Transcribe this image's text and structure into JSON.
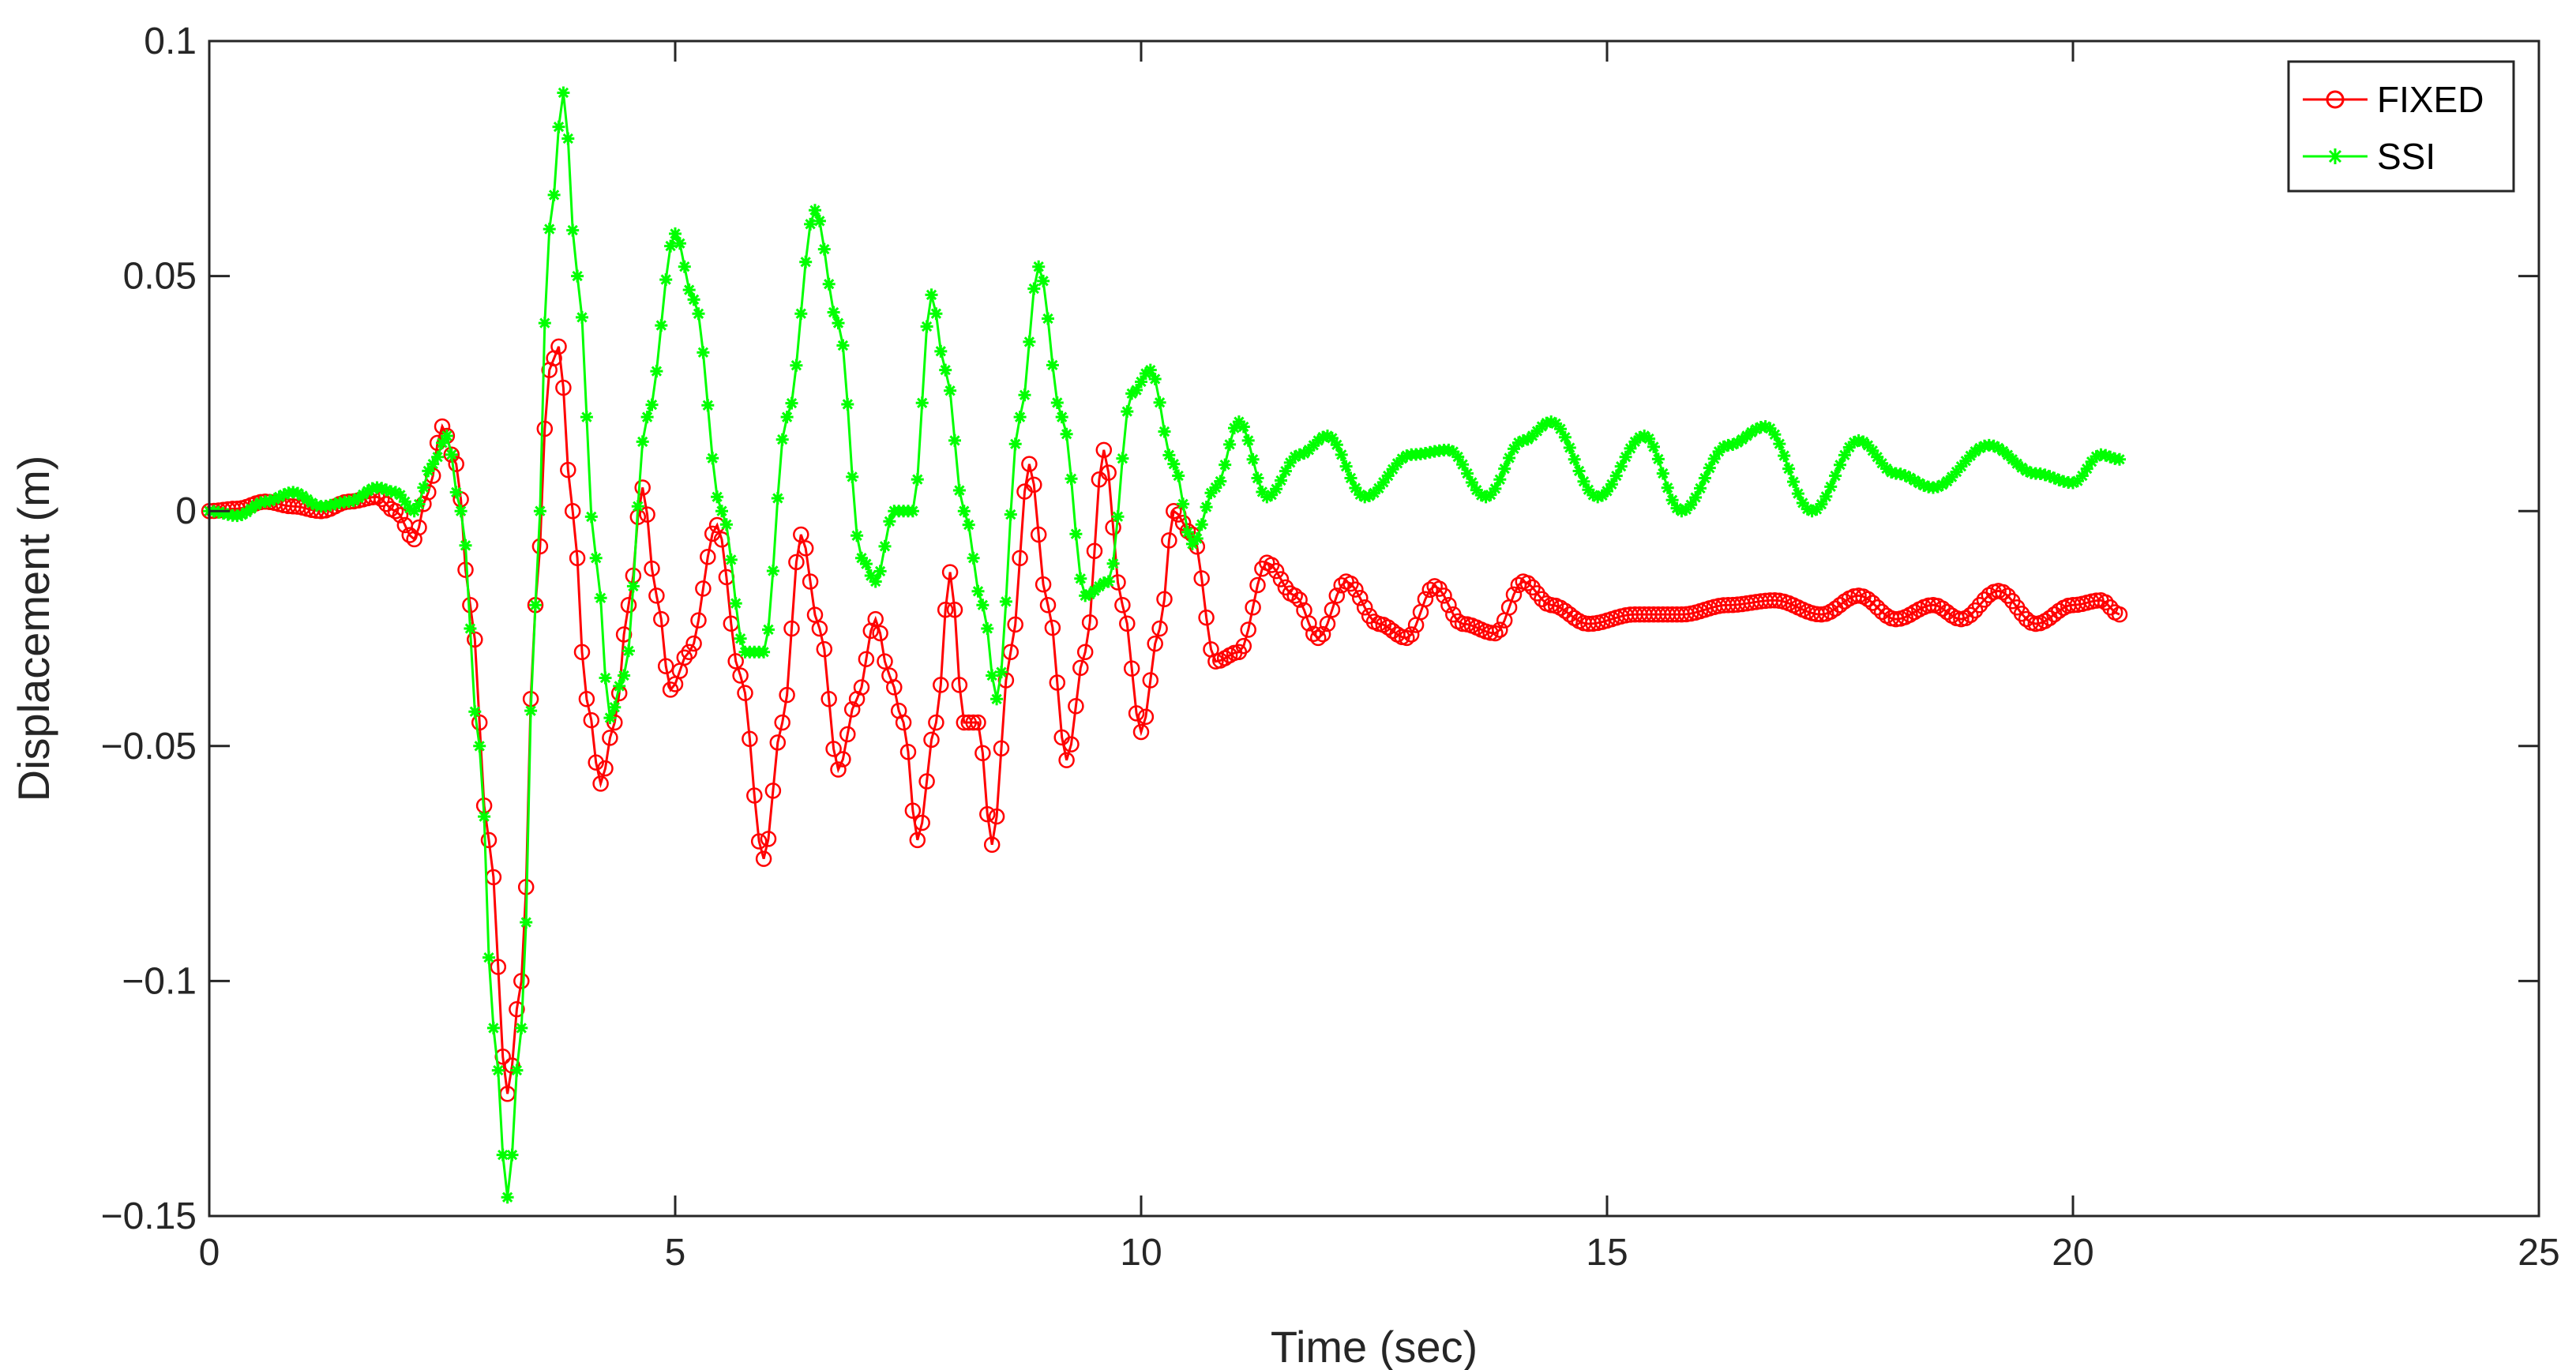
{
  "chart_data": {
    "type": "line",
    "title": "",
    "xlabel": "Time (sec)",
    "ylabel": "Displacement (m)",
    "xlim": [
      0,
      25
    ],
    "ylim": [
      -0.15,
      0.1
    ],
    "xticks": [
      0,
      5,
      10,
      15,
      20,
      25
    ],
    "xtick_labels": [
      "0",
      "5",
      "10",
      "15",
      "20",
      "25"
    ],
    "yticks": [
      -0.15,
      -0.1,
      -0.05,
      0,
      0.05,
      0.1
    ],
    "ytick_labels": [
      "−0.15",
      "−0.1",
      "−0.05",
      "0",
      "0.05",
      "0.1"
    ],
    "grid": false,
    "box": true,
    "legend_position": "top-right",
    "series": [
      {
        "name": "FIXED",
        "color": "#ff0000",
        "marker": "circle",
        "points": [
          [
            0,
            0
          ],
          [
            0.3,
            0.0005
          ],
          [
            0.6,
            0.002
          ],
          [
            0.9,
            0.001
          ],
          [
            1.2,
            0.0
          ],
          [
            1.5,
            0.002
          ],
          [
            1.8,
            0.003
          ],
          [
            2.0,
            0.0
          ],
          [
            2.2,
            -0.006
          ],
          [
            2.35,
            0.004
          ],
          [
            2.5,
            0.018
          ],
          [
            2.65,
            0.01
          ],
          [
            2.8,
            -0.02
          ],
          [
            3.0,
            -0.07
          ],
          [
            3.2,
            -0.124
          ],
          [
            3.35,
            -0.1
          ],
          [
            3.5,
            -0.02
          ],
          [
            3.65,
            0.03
          ],
          [
            3.75,
            0.035
          ],
          [
            3.9,
            0.0
          ],
          [
            4.05,
            -0.04
          ],
          [
            4.2,
            -0.058
          ],
          [
            4.35,
            -0.045
          ],
          [
            4.5,
            -0.02
          ],
          [
            4.65,
            0.005
          ],
          [
            4.8,
            -0.018
          ],
          [
            4.95,
            -0.038
          ],
          [
            5.15,
            -0.03
          ],
          [
            5.45,
            -0.003
          ],
          [
            5.7,
            -0.035
          ],
          [
            5.95,
            -0.074
          ],
          [
            6.15,
            -0.045
          ],
          [
            6.35,
            -0.005
          ],
          [
            6.55,
            -0.025
          ],
          [
            6.75,
            -0.055
          ],
          [
            6.95,
            -0.04
          ],
          [
            7.15,
            -0.023
          ],
          [
            7.3,
            -0.035
          ],
          [
            7.45,
            -0.045
          ],
          [
            7.6,
            -0.07
          ],
          [
            7.8,
            -0.045
          ],
          [
            7.95,
            -0.013
          ],
          [
            8.1,
            -0.045
          ],
          [
            8.25,
            -0.045
          ],
          [
            8.4,
            -0.071
          ],
          [
            8.6,
            -0.03
          ],
          [
            8.8,
            0.01
          ],
          [
            9.0,
            -0.02
          ],
          [
            9.2,
            -0.053
          ],
          [
            9.4,
            -0.03
          ],
          [
            9.6,
            0.013
          ],
          [
            9.8,
            -0.02
          ],
          [
            10.0,
            -0.047
          ],
          [
            10.2,
            -0.025
          ],
          [
            10.35,
            0.0
          ],
          [
            10.55,
            -0.005
          ],
          [
            10.8,
            -0.032
          ],
          [
            11.05,
            -0.03
          ],
          [
            11.35,
            -0.011
          ],
          [
            11.65,
            -0.018
          ],
          [
            11.9,
            -0.027
          ],
          [
            12.2,
            -0.015
          ],
          [
            12.55,
            -0.024
          ],
          [
            12.85,
            -0.027
          ],
          [
            13.15,
            -0.016
          ],
          [
            13.45,
            -0.024
          ],
          [
            13.8,
            -0.026
          ],
          [
            14.1,
            -0.015
          ],
          [
            14.4,
            -0.02
          ],
          [
            14.8,
            -0.024
          ],
          [
            15.3,
            -0.022
          ],
          [
            15.8,
            -0.022
          ],
          [
            16.3,
            -0.02
          ],
          [
            16.8,
            -0.019
          ],
          [
            17.3,
            -0.022
          ],
          [
            17.7,
            -0.018
          ],
          [
            18.1,
            -0.023
          ],
          [
            18.5,
            -0.02
          ],
          [
            18.8,
            -0.023
          ],
          [
            19.2,
            -0.017
          ],
          [
            19.6,
            -0.024
          ],
          [
            20.0,
            -0.02
          ],
          [
            20.3,
            -0.019
          ],
          [
            20.5,
            -0.022
          ]
        ]
      },
      {
        "name": "SSI",
        "color": "#00ff00",
        "marker": "star",
        "points": [
          [
            0,
            0
          ],
          [
            0.3,
            -0.001
          ],
          [
            0.6,
            0.002
          ],
          [
            0.9,
            0.004
          ],
          [
            1.2,
            0.001
          ],
          [
            1.5,
            0.002
          ],
          [
            1.8,
            0.005
          ],
          [
            2.0,
            0.004
          ],
          [
            2.2,
            0.0
          ],
          [
            2.4,
            0.01
          ],
          [
            2.55,
            0.016
          ],
          [
            2.7,
            0.0
          ],
          [
            2.9,
            -0.05
          ],
          [
            3.05,
            -0.11
          ],
          [
            3.2,
            -0.146
          ],
          [
            3.35,
            -0.11
          ],
          [
            3.5,
            -0.02
          ],
          [
            3.65,
            0.06
          ],
          [
            3.8,
            0.089
          ],
          [
            3.95,
            0.05
          ],
          [
            4.15,
            -0.01
          ],
          [
            4.3,
            -0.044
          ],
          [
            4.45,
            -0.035
          ],
          [
            4.7,
            0.02
          ],
          [
            5.0,
            0.059
          ],
          [
            5.2,
            0.045
          ],
          [
            5.5,
            0.0
          ],
          [
            5.75,
            -0.03
          ],
          [
            5.95,
            -0.03
          ],
          [
            6.2,
            0.02
          ],
          [
            6.5,
            0.064
          ],
          [
            6.75,
            0.04
          ],
          [
            7.0,
            -0.01
          ],
          [
            7.15,
            -0.015
          ],
          [
            7.35,
            0.0
          ],
          [
            7.55,
            0.0
          ],
          [
            7.75,
            0.046
          ],
          [
            7.9,
            0.03
          ],
          [
            8.1,
            0.0
          ],
          [
            8.3,
            -0.02
          ],
          [
            8.45,
            -0.04
          ],
          [
            8.7,
            0.02
          ],
          [
            8.9,
            0.052
          ],
          [
            9.15,
            0.02
          ],
          [
            9.4,
            -0.018
          ],
          [
            9.65,
            -0.015
          ],
          [
            9.9,
            0.025
          ],
          [
            10.1,
            0.03
          ],
          [
            10.35,
            0.01
          ],
          [
            10.55,
            -0.007
          ],
          [
            10.8,
            0.005
          ],
          [
            11.05,
            0.019
          ],
          [
            11.35,
            0.003
          ],
          [
            11.7,
            0.012
          ],
          [
            12.0,
            0.016
          ],
          [
            12.4,
            0.003
          ],
          [
            12.9,
            0.012
          ],
          [
            13.3,
            0.013
          ],
          [
            13.7,
            0.003
          ],
          [
            14.1,
            0.015
          ],
          [
            14.4,
            0.019
          ],
          [
            14.9,
            0.003
          ],
          [
            15.4,
            0.016
          ],
          [
            15.8,
            0.0
          ],
          [
            16.3,
            0.014
          ],
          [
            16.7,
            0.018
          ],
          [
            17.2,
            0.0
          ],
          [
            17.7,
            0.015
          ],
          [
            18.1,
            0.008
          ],
          [
            18.5,
            0.005
          ],
          [
            19.1,
            0.014
          ],
          [
            19.6,
            0.008
          ],
          [
            20.0,
            0.006
          ],
          [
            20.3,
            0.012
          ],
          [
            20.5,
            0.011
          ]
        ]
      }
    ]
  }
}
